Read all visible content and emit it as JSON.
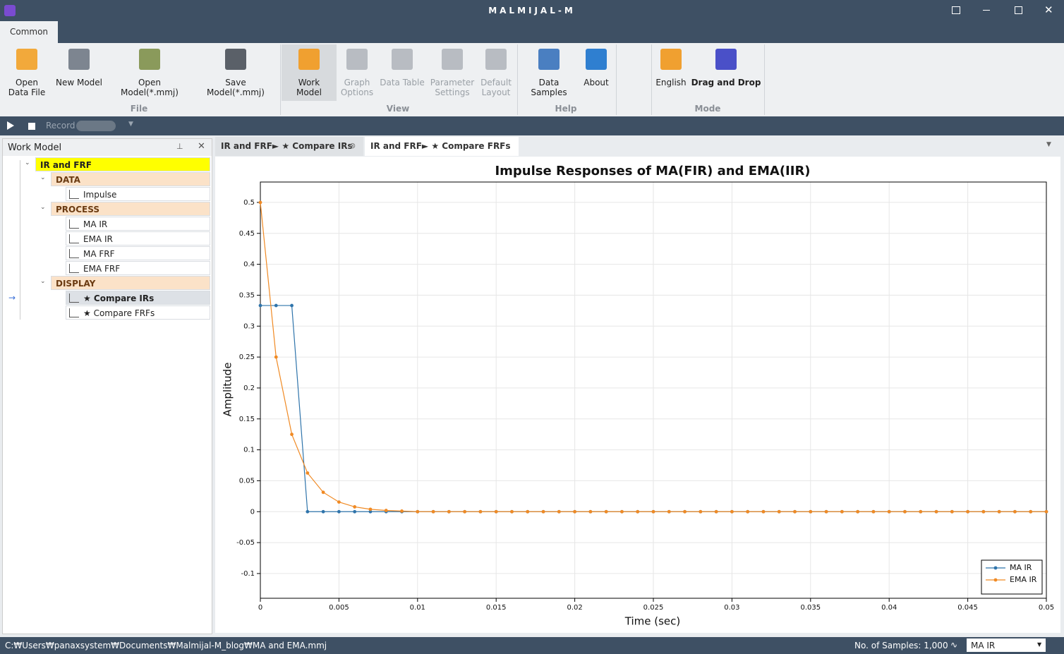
{
  "window": {
    "title": "MALMIJAL-M"
  },
  "ribbon": {
    "tab": "Common",
    "groups": [
      {
        "name": "File",
        "buttons": [
          "Open Data File",
          "New Model",
          "Open Model(*.mmj)",
          "Save Model(*.mmj)"
        ]
      },
      {
        "name": "View",
        "buttons": [
          "Work Model",
          "Graph Options",
          "Data Table",
          "Parameter Settings",
          "Default Layout"
        ]
      },
      {
        "name": "Help",
        "buttons": [
          "Data Samples",
          "About"
        ]
      },
      {
        "name": "Mode",
        "buttons": [
          "English",
          "Drag and Drop"
        ]
      }
    ]
  },
  "toolbar": {
    "record": "Record"
  },
  "panel": {
    "title": "Work Model",
    "nodes": [
      "IR and FRF",
      "DATA",
      "Impulse",
      "PROCESS",
      "MA IR",
      "EMA IR",
      "MA FRF",
      "EMA FRF",
      "DISPLAY",
      "★ Compare IRs",
      "★ Compare FRFs"
    ]
  },
  "doc_tabs": [
    "IR and FRF► ★ Compare IRs",
    "IR and FRF► ★ Compare FRFs"
  ],
  "status": {
    "path": "C:₩Users₩panaxsystem₩Documents₩Malmijal-M_blog₩MA and EMA.mmj",
    "samples": "No. of Samples: 1,000",
    "selection": "MA IR"
  },
  "chart_data": {
    "type": "line",
    "title": "Impulse Responses of MA(FIR) and EMA(IIR)",
    "xlabel": "Time (sec)",
    "ylabel": "Amplitude",
    "x": [
      0,
      0.001,
      0.002,
      0.003,
      0.004,
      0.005,
      0.006,
      0.007,
      0.008,
      0.009,
      0.01,
      0.011,
      0.012,
      0.013,
      0.014,
      0.015,
      0.016,
      0.017,
      0.018,
      0.019,
      0.02,
      0.021,
      0.022,
      0.023,
      0.024,
      0.025,
      0.026,
      0.027,
      0.028,
      0.029,
      0.03,
      0.031,
      0.032,
      0.033,
      0.034,
      0.035,
      0.036,
      0.037,
      0.038,
      0.039,
      0.04,
      0.041,
      0.042,
      0.043,
      0.044,
      0.045,
      0.046,
      0.047,
      0.048,
      0.049,
      0.05
    ],
    "series": [
      {
        "name": "MA IR",
        "color": "#2f74ab",
        "values": [
          0.3333,
          0.3333,
          0.3333,
          0,
          0,
          0,
          0,
          0,
          0,
          0,
          0,
          0,
          0,
          0,
          0,
          0,
          0,
          0,
          0,
          0,
          0,
          0,
          0,
          0,
          0,
          0,
          0,
          0,
          0,
          0,
          0,
          0,
          0,
          0,
          0,
          0,
          0,
          0,
          0,
          0,
          0,
          0,
          0,
          0,
          0,
          0,
          0,
          0,
          0,
          0,
          0
        ]
      },
      {
        "name": "EMA IR",
        "color": "#f08a24",
        "values": [
          0.5,
          0.25,
          0.125,
          0.0625,
          0.0313,
          0.0156,
          0.0078,
          0.0039,
          0.002,
          0.001,
          0,
          0,
          0,
          0,
          0,
          0,
          0,
          0,
          0,
          0,
          0,
          0,
          0,
          0,
          0,
          0,
          0,
          0,
          0,
          0,
          0,
          0,
          0,
          0,
          0,
          0,
          0,
          0,
          0,
          0,
          0,
          0,
          0,
          0,
          0,
          0,
          0,
          0,
          0,
          0,
          0
        ]
      }
    ],
    "xlim": [
      0,
      0.05
    ],
    "xticks": [
      0,
      0.005,
      0.01,
      0.015,
      0.02,
      0.025,
      0.03,
      0.035,
      0.04,
      0.045,
      0.05
    ],
    "ylim": [
      -0.14,
      0.533
    ],
    "yticks": [
      -0.1,
      -0.05,
      0,
      0.05,
      0.1,
      0.15,
      0.2,
      0.25,
      0.3,
      0.35,
      0.4,
      0.45,
      0.5
    ],
    "grid": true,
    "legend": "lower right"
  }
}
